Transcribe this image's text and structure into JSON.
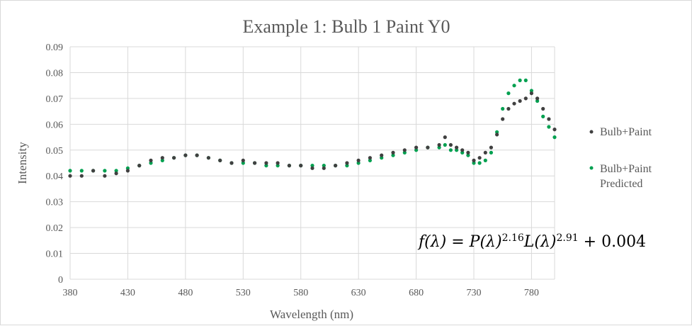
{
  "chart_data": {
    "type": "scatter",
    "title": "Example 1: Bulb 1 Paint Y0",
    "xlabel": "Wavelength (nm)",
    "ylabel": "Intensity",
    "xlim": [
      380,
      800
    ],
    "ylim": [
      0,
      0.09
    ],
    "x_ticks": [
      "380",
      "430",
      "480",
      "530",
      "580",
      "630",
      "680",
      "730",
      "780"
    ],
    "y_ticks": [
      "0",
      "0.01",
      "0.02",
      "0.03",
      "0.04",
      "0.05",
      "0.06",
      "0.07",
      "0.08",
      "0.09"
    ],
    "grid": true,
    "legend_position": "right",
    "annotation": {
      "lhs": "f(λ) = P(λ)",
      "exp1": "2.16",
      "mid": "L(λ)",
      "exp2": "2.91",
      "rhs": " + 0.004"
    },
    "series": [
      {
        "name": "Bulb+Paint",
        "color": "#404040",
        "marker": "dot",
        "x": [
          380,
          390,
          400,
          410,
          420,
          430,
          440,
          450,
          460,
          470,
          480,
          490,
          500,
          510,
          520,
          530,
          540,
          550,
          560,
          570,
          580,
          590,
          600,
          610,
          620,
          630,
          640,
          650,
          660,
          670,
          680,
          690,
          700,
          705,
          710,
          715,
          720,
          725,
          730,
          735,
          740,
          745,
          750,
          755,
          760,
          765,
          770,
          775,
          780,
          785,
          790,
          795,
          800
        ],
        "y": [
          0.04,
          0.04,
          0.042,
          0.04,
          0.041,
          0.042,
          0.044,
          0.046,
          0.047,
          0.047,
          0.048,
          0.048,
          0.047,
          0.046,
          0.045,
          0.046,
          0.045,
          0.045,
          0.045,
          0.044,
          0.044,
          0.043,
          0.043,
          0.044,
          0.045,
          0.046,
          0.047,
          0.048,
          0.049,
          0.05,
          0.051,
          0.051,
          0.052,
          0.055,
          0.052,
          0.051,
          0.05,
          0.049,
          0.046,
          0.047,
          0.049,
          0.051,
          0.056,
          0.062,
          0.066,
          0.068,
          0.069,
          0.07,
          0.072,
          0.07,
          0.066,
          0.062,
          0.058
        ]
      },
      {
        "name": "Bulb+Paint Predicted",
        "color": "#00a050",
        "marker": "dot",
        "x": [
          380,
          390,
          400,
          410,
          420,
          430,
          440,
          450,
          460,
          470,
          480,
          490,
          500,
          510,
          520,
          530,
          540,
          550,
          560,
          570,
          580,
          590,
          600,
          610,
          620,
          630,
          640,
          650,
          660,
          670,
          680,
          690,
          700,
          705,
          710,
          715,
          720,
          725,
          730,
          735,
          740,
          745,
          750,
          755,
          760,
          765,
          770,
          775,
          780,
          785,
          790,
          795,
          800
        ],
        "y": [
          0.042,
          0.042,
          0.042,
          0.042,
          0.042,
          0.043,
          0.044,
          0.045,
          0.046,
          0.047,
          0.048,
          0.048,
          0.047,
          0.046,
          0.045,
          0.045,
          0.045,
          0.044,
          0.044,
          0.044,
          0.044,
          0.044,
          0.044,
          0.044,
          0.044,
          0.045,
          0.046,
          0.047,
          0.048,
          0.049,
          0.05,
          0.051,
          0.051,
          0.052,
          0.05,
          0.05,
          0.049,
          0.048,
          0.045,
          0.045,
          0.046,
          0.049,
          0.057,
          0.066,
          0.072,
          0.075,
          0.077,
          0.077,
          0.073,
          0.069,
          0.063,
          0.059,
          0.055
        ]
      }
    ]
  }
}
